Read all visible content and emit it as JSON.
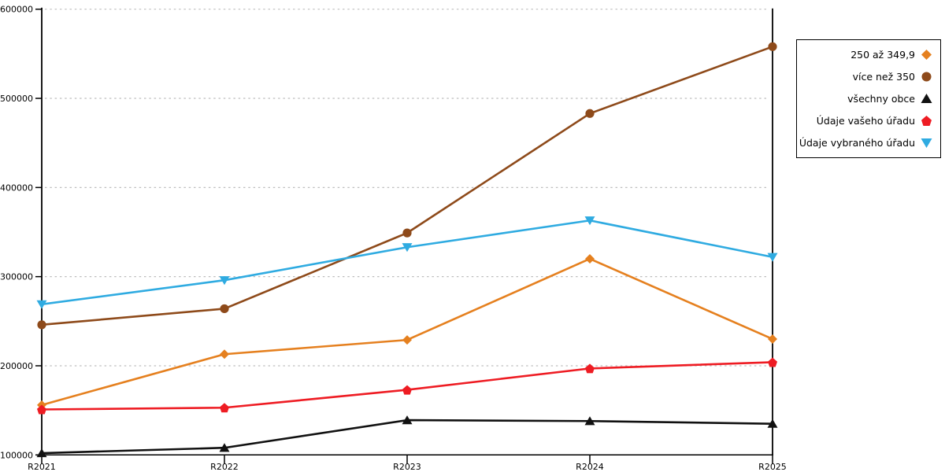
{
  "chart_data": {
    "type": "line",
    "title": "",
    "xlabel": "",
    "ylabel": "",
    "x_categories": [
      "R2021",
      "R2022",
      "R2023",
      "R2024",
      "R2025"
    ],
    "yticks": [
      100000,
      200000,
      300000,
      400000,
      500000,
      600000
    ],
    "ylim": [
      100000,
      600000
    ],
    "grid": true,
    "legend_position": "right",
    "series": [
      {
        "name": "250 až 349,9",
        "marker": "diamond",
        "color": "#E5801F",
        "values": [
          156000,
          213000,
          229000,
          320000,
          230000
        ]
      },
      {
        "name": "více než 350",
        "marker": "circle",
        "color": "#8E4A1A",
        "values": [
          246000,
          264000,
          349000,
          483000,
          558000
        ]
      },
      {
        "name": "všechny obce",
        "marker": "triangle-up",
        "color": "#111111",
        "values": [
          102000,
          108000,
          139000,
          138000,
          135000
        ]
      },
      {
        "name": "Údaje vašeho úřadu",
        "marker": "pentagon",
        "color": "#EE1C23",
        "values": [
          151000,
          153000,
          173000,
          197000,
          204000
        ]
      },
      {
        "name": "Údaje vybraného úřadu",
        "marker": "triangle-down",
        "color": "#2FABE1",
        "values": [
          269000,
          296000,
          333000,
          363000,
          322000
        ]
      }
    ]
  },
  "colors": {
    "background": "#FFFFFF",
    "grid": "#BEBEBE",
    "axis": "#000000",
    "legend_border": "#000000",
    "text": "#000000"
  }
}
